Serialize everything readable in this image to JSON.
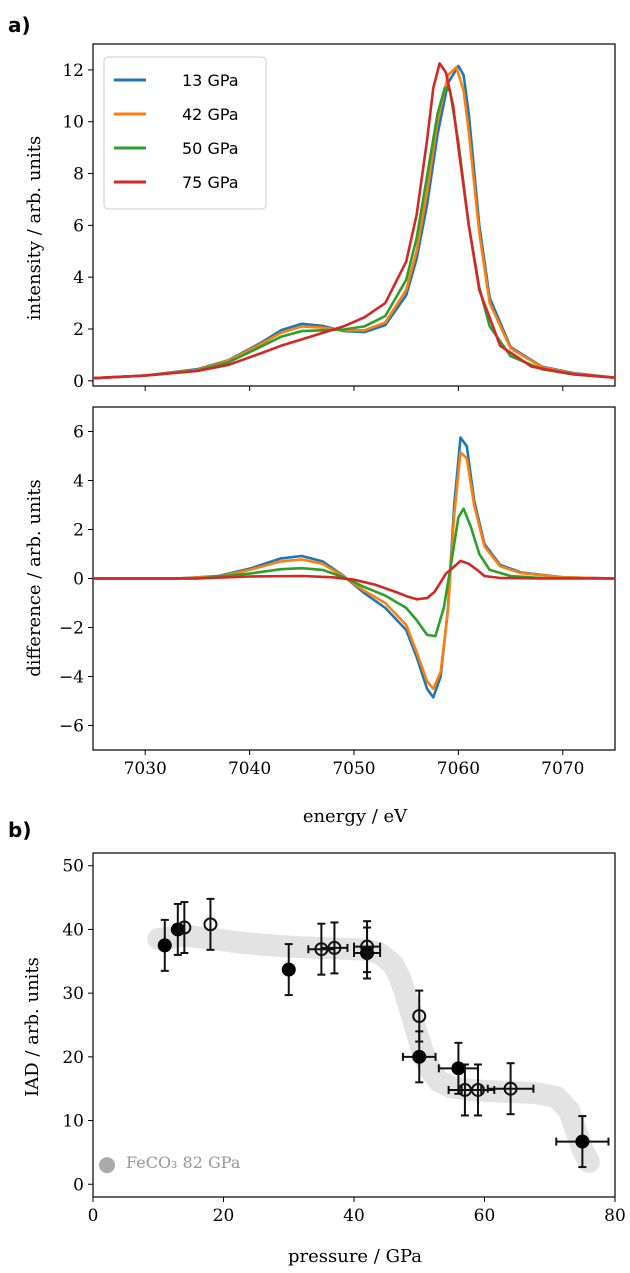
{
  "chart_data": [
    {
      "type": "line",
      "panel_label": "a)",
      "ylabel": "intensity / arb. units",
      "xlim": [
        7025,
        7075
      ],
      "ylim": [
        -0.2,
        13
      ],
      "yticks": [
        "0",
        "2",
        "4",
        "6",
        "8",
        "10",
        "12"
      ],
      "ytick_values": [
        0,
        2,
        4,
        6,
        8,
        10,
        12
      ],
      "legend_position": "top-left",
      "series": [
        {
          "name": "13 GPa",
          "color": "#1f77b4",
          "x": [
            7025,
            7030,
            7035,
            7038,
            7041,
            7043,
            7045,
            7047,
            7049,
            7051,
            7053,
            7055,
            7056,
            7057,
            7058,
            7059,
            7060,
            7060.5,
            7061,
            7062,
            7063,
            7065,
            7068,
            7071,
            7075
          ],
          "y": [
            0.1,
            0.2,
            0.45,
            0.8,
            1.45,
            1.95,
            2.2,
            2.12,
            1.92,
            1.88,
            2.15,
            3.3,
            4.7,
            6.8,
            9.5,
            11.5,
            12.15,
            11.8,
            10.3,
            6.0,
            3.2,
            1.3,
            0.55,
            0.3,
            0.12
          ]
        },
        {
          "name": "42 GPa",
          "color": "#ff7f0e",
          "x": [
            7025,
            7030,
            7035,
            7038,
            7041,
            7043,
            7045,
            7047,
            7049,
            7051,
            7053,
            7055,
            7056,
            7057,
            7058,
            7059,
            7059.8,
            7060.5,
            7061,
            7062,
            7063,
            7065,
            7068,
            7071,
            7075
          ],
          "y": [
            0.1,
            0.2,
            0.42,
            0.78,
            1.4,
            1.85,
            2.1,
            2.05,
            1.95,
            1.95,
            2.25,
            3.5,
            5.0,
            7.3,
            10.0,
            11.8,
            12.1,
            11.2,
            9.6,
            5.7,
            3.0,
            1.25,
            0.53,
            0.28,
            0.12
          ]
        },
        {
          "name": "50 GPa",
          "color": "#2ca02c",
          "x": [
            7025,
            7030,
            7035,
            7038,
            7041,
            7043,
            7045,
            7047,
            7049,
            7051,
            7053,
            7055,
            7056,
            7057,
            7058,
            7058.7,
            7059.2,
            7060,
            7061,
            7062,
            7063,
            7065,
            7068,
            7071,
            7075
          ],
          "y": [
            0.1,
            0.2,
            0.4,
            0.72,
            1.3,
            1.7,
            1.92,
            1.95,
            1.98,
            2.1,
            2.5,
            3.9,
            5.5,
            7.9,
            10.3,
            11.3,
            11.2,
            9.2,
            6.0,
            3.6,
            2.1,
            0.95,
            0.45,
            0.25,
            0.12
          ]
        },
        {
          "name": "75 GPa",
          "color": "#d62728",
          "x": [
            7025,
            7030,
            7035,
            7038,
            7041,
            7043,
            7045,
            7047,
            7049,
            7051,
            7053,
            7055,
            7056,
            7057,
            7057.6,
            7058.2,
            7058.8,
            7059.5,
            7060,
            7061,
            7062,
            7064,
            7067,
            7071,
            7075
          ],
          "y": [
            0.1,
            0.2,
            0.38,
            0.62,
            1.05,
            1.35,
            1.6,
            1.85,
            2.1,
            2.45,
            3.0,
            4.6,
            6.4,
            9.3,
            11.3,
            12.25,
            11.9,
            10.6,
            9.0,
            6.0,
            3.5,
            1.35,
            0.55,
            0.25,
            0.12
          ]
        }
      ]
    },
    {
      "type": "line",
      "ylabel": "difference / arb. units",
      "xlabel": "energy / eV",
      "xlim": [
        7025,
        7075
      ],
      "ylim": [
        -7,
        7
      ],
      "xticks": [
        "7030",
        "7040",
        "7050",
        "7060",
        "7070"
      ],
      "xtick_values": [
        7030,
        7040,
        7050,
        7060,
        7070
      ],
      "yticks": [
        "−6",
        "−4",
        "−2",
        "0",
        "2",
        "4",
        "6"
      ],
      "ytick_values": [
        -6,
        -4,
        -2,
        0,
        2,
        4,
        6
      ],
      "series": [
        {
          "name": "13 GPa",
          "color": "#1f77b4",
          "x": [
            7025,
            7033,
            7037,
            7040,
            7043,
            7045,
            7047,
            7049,
            7051,
            7053,
            7055,
            7056,
            7057,
            7057.6,
            7058.3,
            7059,
            7059.6,
            7060.2,
            7060.8,
            7061.5,
            7062.5,
            7064,
            7066,
            7070,
            7075
          ],
          "y": [
            0,
            0,
            0.1,
            0.4,
            0.82,
            0.92,
            0.7,
            0.1,
            -0.6,
            -1.2,
            -2.1,
            -3.2,
            -4.5,
            -4.85,
            -4.0,
            -1.2,
            3.0,
            5.75,
            5.4,
            3.2,
            1.4,
            0.55,
            0.25,
            0.05,
            0
          ]
        },
        {
          "name": "42 GPa",
          "color": "#ff7f0e",
          "x": [
            7025,
            7033,
            7037,
            7040,
            7043,
            7045,
            7047,
            7049,
            7051,
            7053,
            7055,
            7056,
            7057,
            7057.6,
            7058.3,
            7059,
            7059.6,
            7060.2,
            7060.8,
            7061.5,
            7062.5,
            7064,
            7066,
            7070,
            7075
          ],
          "y": [
            0,
            0,
            0.08,
            0.35,
            0.7,
            0.78,
            0.6,
            0.08,
            -0.5,
            -1.0,
            -1.9,
            -3.0,
            -4.2,
            -4.5,
            -3.8,
            -1.3,
            2.6,
            5.15,
            4.9,
            3.0,
            1.3,
            0.5,
            0.22,
            0.05,
            0
          ]
        },
        {
          "name": "50 GPa",
          "color": "#2ca02c",
          "x": [
            7025,
            7035,
            7040,
            7043,
            7045,
            7047,
            7049,
            7051,
            7053,
            7055,
            7056,
            7057,
            7057.8,
            7058.6,
            7059.3,
            7060,
            7060.5,
            7061.2,
            7062,
            7063,
            7065,
            7068,
            7075
          ],
          "y": [
            0,
            0,
            0.2,
            0.38,
            0.42,
            0.35,
            0.05,
            -0.35,
            -0.7,
            -1.2,
            -1.7,
            -2.3,
            -2.35,
            -1.2,
            0.6,
            2.5,
            2.85,
            2.1,
            1.0,
            0.35,
            0.1,
            0.02,
            0
          ]
        },
        {
          "name": "75 GPa",
          "color": "#d62728",
          "x": [
            7025,
            7035,
            7040,
            7045,
            7048,
            7050,
            7052,
            7054,
            7055,
            7056,
            7057,
            7057.7,
            7058.3,
            7058.8,
            7059.5,
            7060.2,
            7061,
            7061.8,
            7062.5,
            7064,
            7068,
            7075
          ],
          "y": [
            0,
            0,
            0.08,
            0.1,
            0.05,
            -0.05,
            -0.25,
            -0.55,
            -0.72,
            -0.85,
            -0.8,
            -0.55,
            -0.15,
            0.2,
            0.45,
            0.72,
            0.6,
            0.35,
            0.1,
            0.02,
            0,
            0
          ]
        }
      ]
    },
    {
      "type": "scatter",
      "panel_label": "b)",
      "xlabel": "pressure / GPa",
      "ylabel": "IAD / arb. units",
      "xlim": [
        0,
        80
      ],
      "ylim": [
        -2,
        52
      ],
      "xticks": [
        "0",
        "20",
        "40",
        "60",
        "80"
      ],
      "xtick_values": [
        0,
        20,
        40,
        60,
        80
      ],
      "yticks": [
        "0",
        "10",
        "20",
        "30",
        "40",
        "50"
      ],
      "ytick_values": [
        0,
        10,
        20,
        30,
        40,
        50
      ],
      "series": [
        {
          "name": "filled",
          "points": [
            {
              "x": 11,
              "y": 37.5,
              "xerr": 0,
              "yerr": 4
            },
            {
              "x": 13,
              "y": 40,
              "xerr": 0,
              "yerr": 4
            },
            {
              "x": 30,
              "y": 33.7,
              "xerr": 0,
              "yerr": 4
            },
            {
              "x": 42,
              "y": 36.3,
              "xerr": 2,
              "yerr": 4
            },
            {
              "x": 50,
              "y": 20,
              "xerr": 2.5,
              "yerr": 4
            },
            {
              "x": 56,
              "y": 18.2,
              "xerr": 3,
              "yerr": 4
            },
            {
              "x": 75,
              "y": 6.7,
              "xerr": 4,
              "yerr": 4
            }
          ]
        },
        {
          "name": "open",
          "points": [
            {
              "x": 14,
              "y": 40.3,
              "xerr": 0,
              "yerr": 4
            },
            {
              "x": 18,
              "y": 40.8,
              "xerr": 0,
              "yerr": 4
            },
            {
              "x": 35,
              "y": 36.9,
              "xerr": 2,
              "yerr": 4
            },
            {
              "x": 37,
              "y": 37.1,
              "xerr": 2,
              "yerr": 4
            },
            {
              "x": 42,
              "y": 37.3,
              "xerr": 2,
              "yerr": 4
            },
            {
              "x": 50,
              "y": 26.4,
              "xerr": 0,
              "yerr": 4
            },
            {
              "x": 57,
              "y": 14.8,
              "xerr": 2.5,
              "yerr": 4
            },
            {
              "x": 59,
              "y": 14.8,
              "xerr": 2.5,
              "yerr": 4
            },
            {
              "x": 64,
              "y": 15,
              "xerr": 3.5,
              "yerr": 4
            }
          ]
        }
      ],
      "trend_band": {
        "x": [
          10,
          14,
          18,
          22,
          26,
          30,
          34,
          38,
          42,
          44,
          46,
          47,
          48,
          49,
          50,
          51,
          52,
          53,
          55,
          58,
          61,
          64,
          68,
          71,
          73,
          74,
          75,
          76
        ],
        "y": [
          38.5,
          39.0,
          38.6,
          38.0,
          37.6,
          37.3,
          37.1,
          37.0,
          36.8,
          36.2,
          34.5,
          32.5,
          29.5,
          26.0,
          22.5,
          19.5,
          17.5,
          16.2,
          15.2,
          14.8,
          14.6,
          14.5,
          14.3,
          13.7,
          11.5,
          8.5,
          5.5,
          3.5
        ]
      },
      "reference": {
        "label": "FeCO₃ 82 GPa",
        "x": 2,
        "y": 3,
        "color": "#aaaaaa"
      }
    }
  ]
}
